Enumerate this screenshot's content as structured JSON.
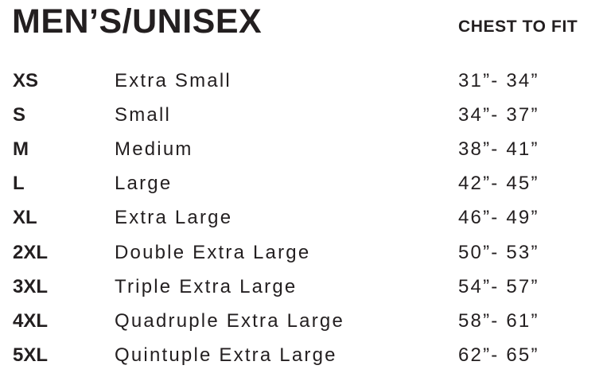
{
  "title": "MEN’S/UNISEX",
  "column_header": "CHEST TO FIT",
  "rows": [
    {
      "code": "XS",
      "name": "Extra Small",
      "chest": "31”- 34”"
    },
    {
      "code": "S",
      "name": "Small",
      "chest": "34”- 37”"
    },
    {
      "code": "M",
      "name": "Medium",
      "chest": "38”- 41”"
    },
    {
      "code": "L",
      "name": "Large",
      "chest": "42”- 45”"
    },
    {
      "code": "XL",
      "name": "Extra Large",
      "chest": "46”- 49”"
    },
    {
      "code": "2XL",
      "name": "Double Extra Large",
      "chest": "50”- 53”"
    },
    {
      "code": "3XL",
      "name": "Triple Extra Large",
      "chest": "54”- 57”"
    },
    {
      "code": "4XL",
      "name": "Quadruple Extra Large",
      "chest": "58”- 61”"
    },
    {
      "code": "5XL",
      "name": "Quintuple Extra Large",
      "chest": "62”- 65”"
    }
  ]
}
